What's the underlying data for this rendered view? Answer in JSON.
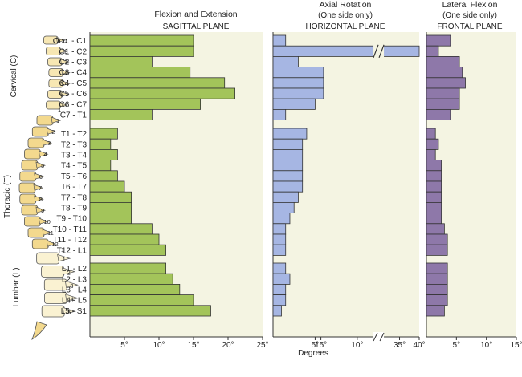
{
  "chart_data": {
    "type": "bar",
    "xlabel": "Degrees",
    "levels": [
      "Occ. - C1",
      "C1 - C2",
      "C2 - C3",
      "C3 - C4",
      "C4 - C5",
      "C5 - C6",
      "C6 - C7",
      "C7 - T1",
      "T1 - T2",
      "T2 - T3",
      "T3 - T4",
      "T4 - T5",
      "T5 - T6",
      "T6 - T7",
      "T7 - T8",
      "T8 - T9",
      "T9 - T10",
      "T10 - T11",
      "T11 - T12",
      "T12 - L1",
      "L1 - L2",
      "L2 - L3",
      "L3 - L4",
      "L4 - L5",
      "L5 - S1"
    ],
    "groups": [
      {
        "name": "Cervical",
        "start": 0,
        "count": 8
      },
      {
        "name": "Thoracic",
        "start": 8,
        "count": 12
      },
      {
        "name": "Lumbar",
        "start": 20,
        "count": 5
      }
    ],
    "panels": [
      {
        "id": "sagittal",
        "title": "Flexion and Extension",
        "subtitle": "SAGITTAL PLANE",
        "fill": "#a3c45a",
        "xlim": [
          0,
          25
        ],
        "ticks": [
          {
            "v": 5,
            "label": "5°"
          },
          {
            "v": 10,
            "label": "10°"
          },
          {
            "v": 15,
            "label": "15°"
          },
          {
            "v": 20,
            "label": "20°"
          },
          {
            "v": 25,
            "label": "25°"
          }
        ],
        "values": [
          15,
          15,
          9,
          14.5,
          19.5,
          21,
          16,
          9,
          4,
          3,
          4,
          3,
          4,
          5,
          6,
          6,
          6,
          9,
          10,
          11,
          11,
          12,
          13,
          15,
          17.5
        ]
      },
      {
        "id": "horizontal",
        "title": "Axial Rotation",
        "subtitle_line1": "(One side only)",
        "subtitle": "HORIZONTAL PLANE",
        "fill": "#a6b6e3",
        "xlim": [
          0,
          15
        ],
        "break": {
          "at": 12.5,
          "resume": 30,
          "end": 40
        },
        "ticks": [
          {
            "v": 5,
            "label": "5°"
          },
          {
            "v": 10,
            "label": "10°"
          },
          {
            "v": 15,
            "label": "15°"
          },
          {
            "v": 35,
            "label": "35°"
          },
          {
            "v": 40,
            "label": "40°"
          }
        ],
        "values": [
          1.5,
          40,
          3,
          6,
          6,
          6,
          5,
          1.5,
          4,
          3.5,
          3.5,
          3.5,
          3.5,
          3.5,
          3,
          2.5,
          2,
          1.5,
          1.5,
          1.5,
          1.5,
          2,
          1.5,
          1.5,
          1
        ]
      },
      {
        "id": "frontal",
        "title": "Lateral Flexion",
        "subtitle_line1": "(One side only)",
        "subtitle": "FRONTAL PLANE",
        "fill": "#8e78a9",
        "xlim": [
          0,
          15
        ],
        "ticks": [
          {
            "v": 5,
            "label": "5°"
          },
          {
            "v": 10,
            "label": "10°"
          },
          {
            "v": 15,
            "label": "15°"
          }
        ],
        "values": [
          4,
          2,
          5.5,
          6,
          6.5,
          5.5,
          5.5,
          4,
          1.5,
          2,
          1.5,
          2.5,
          2.5,
          2.5,
          2.5,
          2.5,
          2.5,
          3,
          3.5,
          3.5,
          3.5,
          3.5,
          3.5,
          3.5,
          3
        ]
      }
    ],
    "spine_labels": {
      "regions": [
        "Cervical (C)",
        "Thoracic (T)",
        "Lumbar (L)"
      ],
      "cervical_numbers": [
        "1",
        "2",
        "3",
        "4",
        "5",
        "6",
        "7"
      ],
      "thoracic_numbers": [
        "1",
        "2",
        "3",
        "4",
        "5",
        "6",
        "7",
        "8",
        "9",
        "10",
        "11",
        "12"
      ],
      "lumbar_numbers": [
        "1",
        "2",
        "3",
        "4",
        "5"
      ],
      "transition_numbers": [
        "1",
        "1"
      ]
    }
  }
}
